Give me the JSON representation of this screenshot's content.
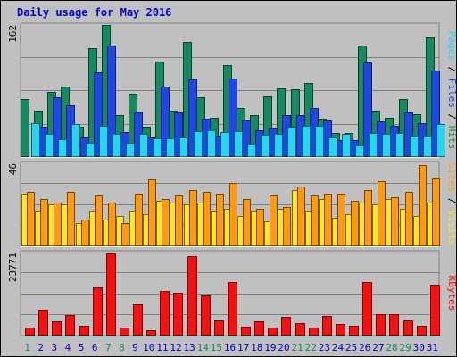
{
  "chart_data": [
    {
      "type": "bar",
      "title": "Daily usage for May 2016",
      "categories": [
        "1",
        "2",
        "3",
        "4",
        "5",
        "6",
        "7",
        "8",
        "9",
        "10",
        "11",
        "12",
        "13",
        "14",
        "15",
        "16",
        "17",
        "18",
        "19",
        "20",
        "21",
        "22",
        "23",
        "24",
        "25",
        "26",
        "27",
        "28",
        "29",
        "30",
        "31"
      ],
      "weekend_days": [
        "1",
        "7",
        "8",
        "14",
        "15",
        "21",
        "22",
        "28",
        "29"
      ],
      "y_max_label": "162",
      "ylim": [
        0,
        162
      ],
      "series": [
        {
          "name": "Hits",
          "color": "#138a5f",
          "values": [
            71,
            57,
            80,
            86,
            37,
            134,
            162,
            51,
            78,
            37,
            117,
            57,
            141,
            73,
            48,
            113,
            60,
            51,
            74,
            84,
            83,
            91,
            47,
            30,
            30,
            137,
            57,
            48,
            71,
            53,
            147
          ]
        },
        {
          "name": "Files",
          "color": "#1e47e6",
          "values": [
            0,
            37,
            73,
            63,
            24,
            104,
            137,
            31,
            55,
            24,
            86,
            55,
            95,
            47,
            26,
            96,
            45,
            33,
            36,
            51,
            51,
            60,
            45,
            21,
            21,
            116,
            44,
            38,
            55,
            42,
            106
          ]
        },
        {
          "name": "Pages",
          "color": "#25d7ee",
          "values": [
            42,
            28,
            22,
            40,
            17,
            38,
            29,
            18,
            29,
            23,
            23,
            24,
            32,
            33,
            31,
            32,
            16,
            27,
            29,
            37,
            38,
            38,
            24,
            29,
            14,
            30,
            28,
            30,
            26,
            26,
            41
          ]
        }
      ],
      "series_label_text": [
        "Pages",
        "Files",
        "Hits"
      ]
    },
    {
      "type": "bar",
      "y_max_label": "46",
      "ylim": [
        0,
        46
      ],
      "series": [
        {
          "name": "Visits",
          "color": "#ffe620",
          "values": [
            29,
            20,
            23,
            23,
            13,
            20,
            15,
            17,
            20,
            18,
            25,
            24,
            23,
            24,
            20,
            21,
            17,
            20,
            14,
            21,
            31,
            20,
            26,
            16,
            18,
            24,
            23,
            26,
            21,
            17,
            24
          ]
        },
        {
          "name": "Sites",
          "color": "#ff9a10",
          "values": [
            30,
            26,
            24,
            30,
            15,
            28,
            24,
            13,
            29,
            37,
            26,
            28,
            31,
            30,
            29,
            35,
            26,
            21,
            28,
            22,
            33,
            28,
            29,
            29,
            25,
            31,
            36,
            27,
            30,
            45,
            38
          ]
        }
      ],
      "series_label_text": [
        "Sites",
        "Visits"
      ]
    },
    {
      "type": "bar",
      "y_max_label": "23771",
      "ylim": [
        0,
        23771
      ],
      "series": [
        {
          "name": "KBytes",
          "color": "#f61010",
          "values": [
            2210,
            7380,
            3970,
            5940,
            2910,
            13790,
            23630,
            2210,
            8940,
            1620,
            12860,
            12290,
            22800,
            11420,
            4340,
            15430,
            2520,
            4030,
            2230,
            5410,
            3600,
            2420,
            5740,
            3230,
            2840,
            15250,
            6250,
            6250,
            4460,
            2870,
            14610
          ]
        }
      ],
      "series_label_text": [
        "KBytes"
      ]
    }
  ],
  "colors": {
    "background": "#c0c0c0",
    "plot": "#c0c0c0",
    "title": "#0000c0",
    "weekday_label": "#138a5f",
    "weekend_label": "#138a5f",
    "weekday_text": "#0000c0"
  }
}
